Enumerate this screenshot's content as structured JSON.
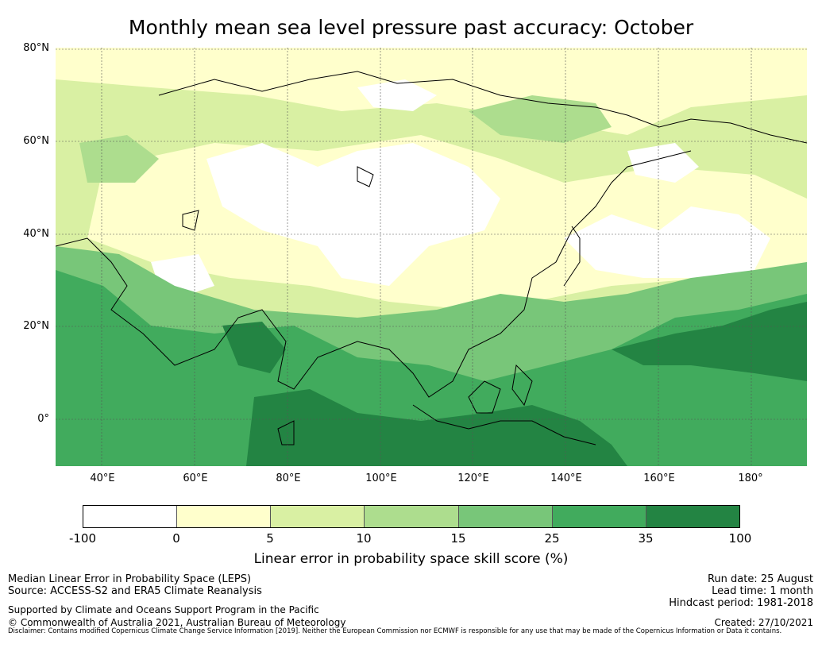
{
  "title": "Monthly mean sea level pressure past accuracy: October",
  "map": {
    "lat_labels": [
      "80°N",
      "60°N",
      "40°N",
      "20°N",
      "0°"
    ],
    "lon_labels": [
      "40°E",
      "60°E",
      "80°E",
      "100°E",
      "120°E",
      "140°E",
      "160°E",
      "180°"
    ],
    "lat_range": [
      -10,
      80
    ],
    "lon_range": [
      30,
      192
    ]
  },
  "colorbar": {
    "ticks": [
      "-100",
      "0",
      "5",
      "10",
      "15",
      "25",
      "35",
      "100"
    ],
    "colors": [
      "#ffffff",
      "#ffffcc",
      "#d9f0a3",
      "#addd8e",
      "#78c679",
      "#41ab5d",
      "#238443"
    ],
    "label": "Linear error in probability space skill score (%)"
  },
  "footer": {
    "left_line1": "Median Linear Error in Probability Space (LEPS)",
    "left_line2": "Source: ACCESS-S2 and ERA5 Climate Reanalysis",
    "left_line3": "Supported by Climate and Oceans Support Program in the Pacific",
    "left_line4": "© Commonwealth of Australia 2021, Australian Bureau of Meteorology",
    "right_line1": "Run date: 25 August",
    "right_line2": "Lead time: 1 month",
    "right_line3": "Hindcast period: 1981-2018",
    "right_line4": "Created: 27/10/2021",
    "disclaimer": "Disclaimer: Contains modified Copernicus Climate Change Service Information [2019]. Neither the European Commission nor ECMWF is responsible for any use that may be made of the Copernicus Information or Data it contains."
  }
}
